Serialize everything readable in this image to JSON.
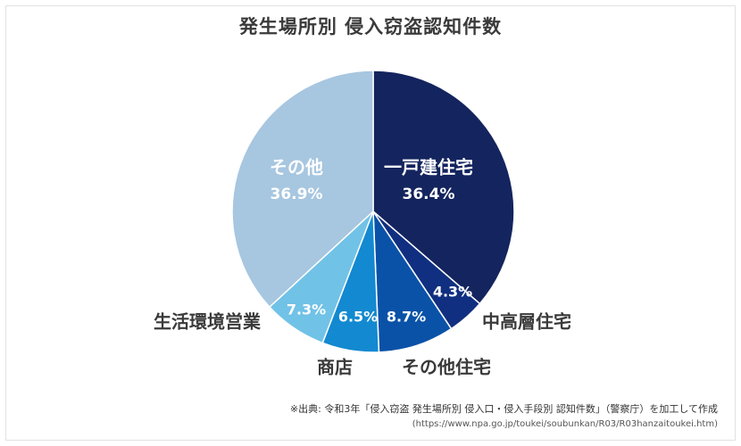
{
  "chart_data": {
    "type": "pie",
    "title": "発生場所別 侵入窃盗認知件数",
    "start_angle_deg": 0,
    "direction": "clockwise",
    "slices": [
      {
        "label": "一戸建住宅",
        "value": 36.4,
        "value_label": "36.4%",
        "color": "#14245e",
        "label_position": "inside"
      },
      {
        "label": "中高層住宅",
        "value": 4.3,
        "value_label": "4.3%",
        "color": "#102f80",
        "label_position": "outside"
      },
      {
        "label": "その他住宅",
        "value": 8.7,
        "value_label": "8.7%",
        "color": "#0a52a8",
        "label_position": "outside"
      },
      {
        "label": "商店",
        "value": 6.5,
        "value_label": "6.5%",
        "color": "#1389d1",
        "label_position": "outside"
      },
      {
        "label": "生活環境営業",
        "value": 7.3,
        "value_label": "7.3%",
        "color": "#71c2e7",
        "label_position": "outside"
      },
      {
        "label": "その他",
        "value": 36.9,
        "value_label": "36.9%",
        "color": "#a7c6e0",
        "label_position": "inside"
      }
    ]
  },
  "source": {
    "note": "※出典: 令和3年「侵入窃盗 発生場所別 侵入口・侵入手段別 認知件数」（警察庁）を加工して作成",
    "url": "(https://www.npa.go.jp/toukei/soubunkan/R03/R03hanzaitoukei.htm)"
  }
}
